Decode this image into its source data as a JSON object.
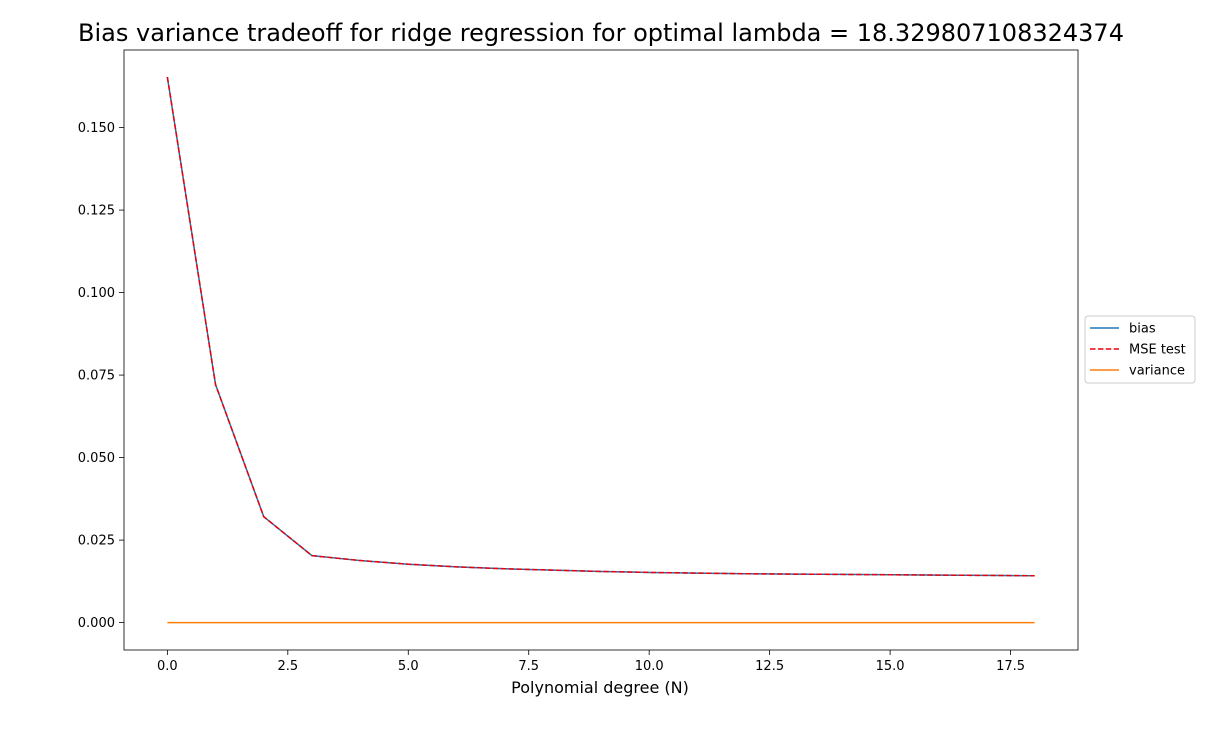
{
  "chart_data": {
    "type": "line",
    "title": "Bias variance tradeoff for ridge regression for optimal lambda = 18.329807108324374",
    "xlabel": "Polynomial degree (N)",
    "ylabel": "",
    "xlim": [
      -0.9,
      18.9
    ],
    "ylim": [
      -0.0083,
      0.1735
    ],
    "xticks": [
      0.0,
      2.5,
      5.0,
      7.5,
      10.0,
      12.5,
      15.0,
      17.5
    ],
    "xtick_labels": [
      "0.0",
      "2.5",
      "5.0",
      "7.5",
      "10.0",
      "12.5",
      "15.0",
      "17.5"
    ],
    "yticks": [
      0.0,
      0.025,
      0.05,
      0.075,
      0.1,
      0.125,
      0.15
    ],
    "ytick_labels": [
      "0.000",
      "0.025",
      "0.050",
      "0.075",
      "0.100",
      "0.125",
      "0.150"
    ],
    "grid": false,
    "legend_position": "center-right-outside",
    "x": [
      0,
      1,
      2,
      3,
      4,
      5,
      6,
      7,
      8,
      9,
      10,
      11,
      12,
      13,
      14,
      15,
      16,
      17,
      18
    ],
    "series": [
      {
        "name": "bias",
        "color": "#1f77b4",
        "style": "solid",
        "values": [
          0.1653,
          0.0721,
          0.0321,
          0.0203,
          0.0188,
          0.0177,
          0.0169,
          0.0163,
          0.0159,
          0.0155,
          0.0152,
          0.015,
          0.0148,
          0.0147,
          0.0146,
          0.0145,
          0.0144,
          0.0143,
          0.0142
        ]
      },
      {
        "name": "MSE test",
        "color": "#e8000b",
        "style": "dashed",
        "values": [
          0.1653,
          0.0721,
          0.0321,
          0.0203,
          0.0188,
          0.0177,
          0.0169,
          0.0163,
          0.0159,
          0.0155,
          0.0152,
          0.015,
          0.0148,
          0.0147,
          0.0146,
          0.0145,
          0.0144,
          0.0143,
          0.0142
        ]
      },
      {
        "name": "variance",
        "color": "#ff7f0e",
        "style": "solid",
        "values": [
          0.0,
          0.0,
          0.0,
          0.0,
          0.0,
          0.0,
          0.0,
          0.0,
          0.0,
          0.0,
          0.0,
          0.0,
          0.0,
          0.0,
          0.0,
          0.0,
          0.0,
          0.0,
          0.0
        ]
      }
    ]
  }
}
